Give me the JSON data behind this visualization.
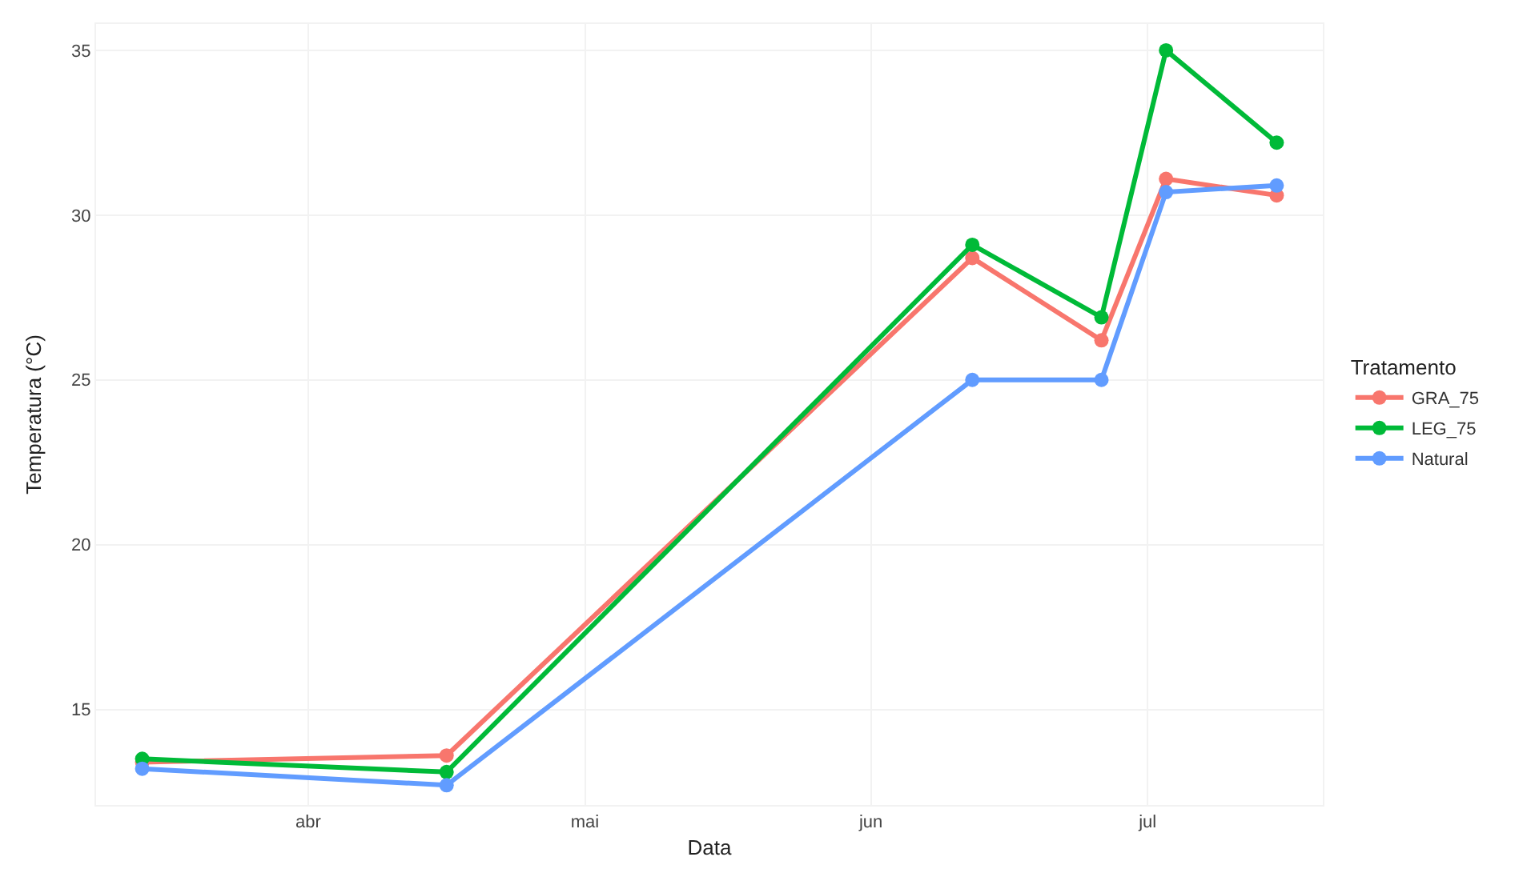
{
  "chart_data": {
    "type": "line",
    "xlabel": "Data",
    "ylabel": "Temperatura (°C)",
    "legend_title": "Tratamento",
    "x": [
      "--03-14",
      "--04-16",
      "--06-12",
      "--06-26",
      "--07-03",
      "--07-15"
    ],
    "series": [
      {
        "name": "GRA_75",
        "color": "#f8766d",
        "values": [
          13.4,
          13.6,
          28.7,
          26.2,
          31.1,
          30.6
        ]
      },
      {
        "name": "LEG_75",
        "color": "#00ba38",
        "values": [
          13.5,
          13.1,
          29.1,
          26.9,
          35.0,
          32.2
        ]
      },
      {
        "name": "Natural",
        "color": "#619cff",
        "values": [
          13.2,
          12.7,
          25.0,
          25.0,
          30.7,
          30.9
        ]
      }
    ],
    "xlim": [
      "--03-09",
      "--07-20"
    ],
    "xticks": [
      {
        "value": "--04-01",
        "label": "abr"
      },
      {
        "value": "--05-01",
        "label": "mai"
      },
      {
        "value": "--06-01",
        "label": "jun"
      },
      {
        "value": "--07-01",
        "label": "jul"
      }
    ],
    "ylim": [
      12.1,
      35.8
    ],
    "yticks": [
      15,
      20,
      25,
      30,
      35
    ],
    "legend": "right",
    "grid": true,
    "marker": "circle",
    "line_style": "solid"
  }
}
